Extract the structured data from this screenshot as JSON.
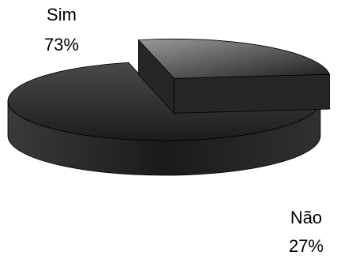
{
  "chart_data": {
    "type": "pie3d",
    "categories": [
      "Sim",
      "Não"
    ],
    "values": [
      73,
      27
    ],
    "value_labels": [
      "73%",
      "27%"
    ],
    "colors": [
      "#2e2e2e",
      "#6a6a6a"
    ]
  }
}
